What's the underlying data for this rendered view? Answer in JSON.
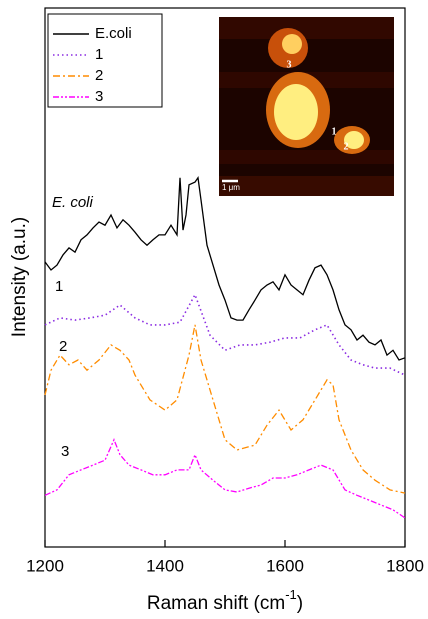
{
  "chart_data": {
    "type": "line",
    "xlabel": {
      "text": "Raman shift (cm",
      "sup": "-1",
      "end": ")"
    },
    "ylabel": "Intensity (a.u.)",
    "xlim": [
      1200,
      1800
    ],
    "xticks": [
      1200,
      1400,
      1600,
      1800
    ],
    "ylim": [
      0,
      100
    ],
    "legend": "upper left",
    "annotations": [
      "E. coli",
      "1",
      "2",
      "3"
    ],
    "inset": {
      "labels": [
        "3",
        "1",
        "2"
      ],
      "scale_bar": "1 μm"
    },
    "series": [
      {
        "name": "E.coli",
        "color": "#000000",
        "style": "solid",
        "x": [
          1200,
          1210,
          1220,
          1230,
          1240,
          1250,
          1260,
          1270,
          1280,
          1290,
          1300,
          1310,
          1320,
          1330,
          1340,
          1350,
          1360,
          1370,
          1380,
          1390,
          1400,
          1410,
          1420,
          1425,
          1430,
          1435,
          1440,
          1450,
          1455,
          1460,
          1470,
          1480,
          1490,
          1500,
          1510,
          1520,
          1530,
          1540,
          1550,
          1560,
          1570,
          1580,
          1590,
          1600,
          1610,
          1620,
          1630,
          1640,
          1650,
          1660,
          1670,
          1680,
          1690,
          1700,
          1710,
          1720,
          1730,
          1740,
          1750,
          1760,
          1770,
          1780,
          1790,
          1800
        ],
        "values": [
          52.9,
          51.4,
          52.3,
          54.2,
          55.5,
          54.7,
          57.0,
          57.9,
          59.2,
          60.3,
          59.7,
          61.6,
          59.2,
          60.7,
          59.7,
          58.4,
          57.0,
          56.0,
          57.0,
          57.9,
          57.9,
          59.7,
          57.9,
          68.5,
          58.8,
          61.6,
          67.2,
          67.7,
          68.5,
          64.4,
          56.0,
          52.3,
          48.6,
          45.8,
          42.5,
          42.1,
          42.1,
          44.0,
          45.8,
          47.7,
          48.6,
          49.2,
          47.7,
          50.5,
          48.6,
          47.7,
          46.8,
          49.5,
          51.8,
          52.3,
          50.5,
          47.7,
          44.0,
          41.2,
          40.3,
          38.4,
          39.3,
          38.0,
          37.5,
          38.4,
          35.6,
          36.5,
          34.7,
          35.1
        ]
      },
      {
        "name": "1",
        "color": "#8a2be2",
        "style": "dotted",
        "x": [
          1200,
          1225,
          1250,
          1275,
          1300,
          1325,
          1350,
          1375,
          1400,
          1425,
          1450,
          1475,
          1500,
          1525,
          1550,
          1575,
          1600,
          1625,
          1650,
          1670,
          1690,
          1710,
          1730,
          1750,
          1775,
          1800
        ],
        "values": [
          41.2,
          42.5,
          42.1,
          42.5,
          43.0,
          44.9,
          42.5,
          41.2,
          41.2,
          41.7,
          46.8,
          39.3,
          36.5,
          37.5,
          37.5,
          38.0,
          38.8,
          38.8,
          40.3,
          41.2,
          37.5,
          34.7,
          33.8,
          33.2,
          33.2,
          31.9
        ]
      },
      {
        "name": "2",
        "color": "#ff8c00",
        "style": "dashdot",
        "x": [
          1200,
          1210,
          1225,
          1240,
          1255,
          1270,
          1290,
          1310,
          1325,
          1340,
          1350,
          1375,
          1400,
          1420,
          1440,
          1450,
          1460,
          1480,
          1500,
          1520,
          1550,
          1570,
          1590,
          1610,
          1630,
          1650,
          1670,
          1680,
          1690,
          1710,
          1730,
          1750,
          1775,
          1800
        ],
        "values": [
          28.2,
          32.8,
          35.6,
          33.8,
          34.7,
          32.8,
          34.7,
          37.5,
          36.5,
          34.7,
          31.9,
          27.3,
          25.4,
          27.3,
          35.6,
          41.2,
          34.7,
          27.3,
          19.9,
          18.0,
          18.9,
          22.6,
          25.4,
          21.7,
          23.6,
          27.3,
          31.0,
          30.1,
          23.6,
          18.0,
          14.3,
          12.4,
          10.6,
          10.0
        ]
      },
      {
        "name": "3",
        "color": "#ff00ff",
        "style": "dashdotdot",
        "x": [
          1200,
          1220,
          1240,
          1260,
          1280,
          1300,
          1315,
          1325,
          1340,
          1360,
          1380,
          1400,
          1420,
          1440,
          1450,
          1460,
          1480,
          1500,
          1520,
          1540,
          1560,
          1580,
          1600,
          1620,
          1640,
          1660,
          1680,
          1700,
          1720,
          1740,
          1760,
          1780,
          1800
        ],
        "values": [
          9.6,
          10.6,
          13.4,
          14.3,
          15.2,
          16.1,
          19.9,
          17.1,
          15.2,
          14.3,
          13.4,
          13.4,
          14.3,
          14.3,
          17.1,
          14.3,
          12.4,
          10.6,
          10.2,
          10.9,
          11.5,
          12.8,
          12.8,
          13.4,
          14.3,
          15.2,
          14.3,
          10.6,
          9.6,
          8.7,
          7.8,
          6.9,
          5.4
        ]
      }
    ]
  }
}
